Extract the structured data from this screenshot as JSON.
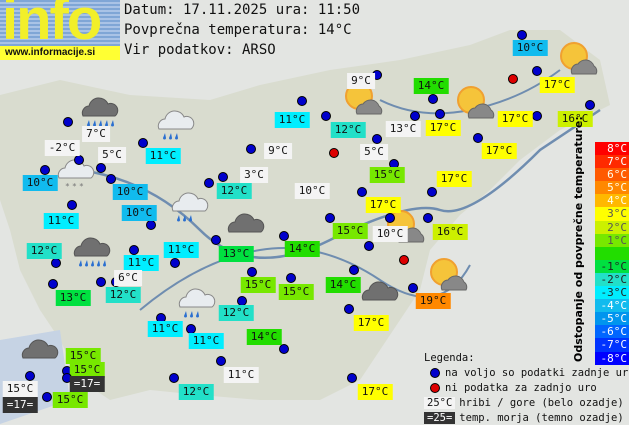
{
  "header": {
    "logo": "info",
    "site": "www.informacije.si",
    "date_line": "Datum: 17.11.2025 ura: 11:50",
    "avg_line": "Povprečna temperatura: 14°C",
    "source_line": "Vir podatkov: ARSO"
  },
  "average_temp": 14,
  "scale": {
    "title": "Odstopanje od povprečne temperature:",
    "items": [
      {
        "label": "8°C",
        "color": "#ff0000"
      },
      {
        "label": "7°C",
        "color": "#ff2a00"
      },
      {
        "label": "6°C",
        "color": "#ff5a00"
      },
      {
        "label": "5°C",
        "color": "#ff8800"
      },
      {
        "label": "4°C",
        "color": "#ffb800"
      },
      {
        "label": "3°C",
        "color": "#ffff00"
      },
      {
        "label": "2°C",
        "color": "#ccf000"
      },
      {
        "label": "1°C",
        "color": "#77e800"
      },
      {
        "label": "",
        "color": "#22dd00"
      },
      {
        "label": "-1°C",
        "color": "#00e040"
      },
      {
        "label": "-2°C",
        "color": "#22e0c8"
      },
      {
        "label": "-3°C",
        "color": "#00eeff"
      },
      {
        "label": "-4°C",
        "color": "#11bbee"
      },
      {
        "label": "-5°C",
        "color": "#0095ee"
      },
      {
        "label": "-6°C",
        "color": "#0066ff"
      },
      {
        "label": "-7°C",
        "color": "#0033ff"
      },
      {
        "label": "-8°C",
        "color": "#0000ff"
      }
    ]
  },
  "legend": {
    "title": "Legenda:",
    "available": "na voljo so podatki zadnje ure",
    "missing": "ni podatka za zadnjo uro",
    "mountain_sample": "25°C",
    "mountain": "hribi / gore (belo ozadje)",
    "sea_sample": "=25=",
    "sea": "temp. morja (temno ozadje)",
    "colors": {
      "available": "#0000cc",
      "missing": "#dd0000",
      "mountain_bg": "#f4f4f4",
      "sea_bg": "#333333"
    }
  },
  "stations": [
    {
      "t": "10°C",
      "type": "normal"
    },
    {
      "t": "9°C",
      "type": "mountain"
    },
    {
      "t": "14°C",
      "type": "normal"
    },
    {
      "t": "17°C",
      "type": "normal"
    },
    {
      "t": "11°C",
      "type": "normal"
    },
    {
      "t": "12°C",
      "type": "normal"
    },
    {
      "t": "13°C",
      "type": "mountain"
    },
    {
      "t": "17°C",
      "type": "normal"
    },
    {
      "t": "17°C",
      "type": "normal"
    },
    {
      "t": "16°C",
      "type": "normal"
    },
    {
      "t": "17°C",
      "type": "normal"
    },
    {
      "t": "5°C",
      "type": "mountain"
    },
    {
      "t": "15°C",
      "type": "normal"
    },
    {
      "t": "17°C",
      "type": "normal"
    },
    {
      "t": "10°C",
      "type": "mountain"
    },
    {
      "t": "17°C",
      "type": "normal"
    },
    {
      "t": "15°C",
      "type": "normal"
    },
    {
      "t": "10°C",
      "type": "mountain"
    },
    {
      "t": "16°C",
      "type": "normal"
    },
    {
      "t": "14°C",
      "type": "normal"
    },
    {
      "t": "7°C",
      "type": "mountain"
    },
    {
      "t": "-2°C",
      "type": "mountain"
    },
    {
      "t": "5°C",
      "type": "mountain"
    },
    {
      "t": "11°C",
      "type": "normal"
    },
    {
      "t": "9°C",
      "type": "mountain"
    },
    {
      "t": "10°C",
      "type": "normal"
    },
    {
      "t": "10°C",
      "type": "normal"
    },
    {
      "t": "3°C",
      "type": "mountain"
    },
    {
      "t": "12°C",
      "type": "normal"
    },
    {
      "t": "10°C",
      "type": "normal"
    },
    {
      "t": "11°C",
      "type": "normal"
    },
    {
      "t": "12°C",
      "type": "normal"
    },
    {
      "t": "11°C",
      "type": "normal"
    },
    {
      "t": "11°C",
      "type": "normal"
    },
    {
      "t": "13°C",
      "type": "normal"
    },
    {
      "t": "6°C",
      "type": "mountain"
    },
    {
      "t": "12°C",
      "type": "normal"
    },
    {
      "t": "13°C",
      "type": "normal"
    },
    {
      "t": "15°C",
      "type": "normal"
    },
    {
      "t": "15°C",
      "type": "normal"
    },
    {
      "t": "12°C",
      "type": "normal"
    },
    {
      "t": "14°C",
      "type": "normal"
    },
    {
      "t": "11°C",
      "type": "normal"
    },
    {
      "t": "11°C",
      "type": "normal"
    },
    {
      "t": "14°C",
      "type": "normal"
    },
    {
      "t": "17°C",
      "type": "normal"
    },
    {
      "t": "19°C",
      "type": "normal"
    },
    {
      "t": "15°C",
      "type": "normal"
    },
    {
      "t": "15°C",
      "type": "normal"
    },
    {
      "t": "=17=",
      "type": "sea"
    },
    {
      "t": "15°C",
      "type": "mountain"
    },
    {
      "t": "=17=",
      "type": "sea"
    },
    {
      "t": "15°C",
      "type": "normal"
    },
    {
      "t": "12°C",
      "type": "normal"
    },
    {
      "t": "11°C",
      "type": "mountain"
    },
    {
      "t": "17°C",
      "type": "normal"
    }
  ],
  "weather_icons": [
    "rain-cloud-dark",
    "rain-cloud-light",
    "snow-cloud-light",
    "rain-cloud-light",
    "cloud-dark",
    "rain-cloud-dark",
    "rain-cloud-light",
    "cloud-dark",
    "sun-cloud",
    "sun-cloud",
    "sun-cloud",
    "sun-cloud",
    "cloud-dark",
    "sun-cloud"
  ]
}
